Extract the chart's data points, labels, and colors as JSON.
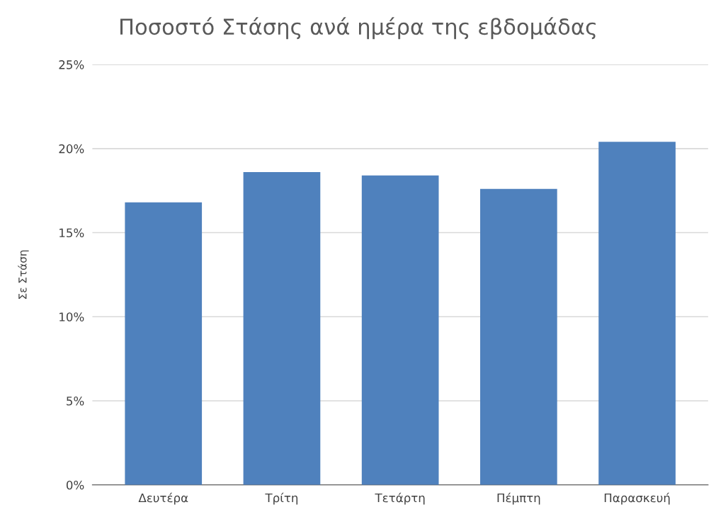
{
  "chart_data": {
    "type": "bar",
    "title": "Ποσοστό Στάσης ανά ημέρα της εβδομάδας",
    "ylabel": "Σε Στάση",
    "categories": [
      "Δευτέρα",
      "Τρίτη",
      "Τετάρτη",
      "Πέμπτη",
      "Παρασκευή"
    ],
    "values": [
      16.8,
      18.6,
      18.4,
      17.6,
      20.4
    ],
    "color": "#4f81bd",
    "ylim": [
      0,
      25
    ],
    "yticks": [
      {
        "value": 0,
        "label": "0%"
      },
      {
        "value": 5,
        "label": "5%"
      },
      {
        "value": 10,
        "label": "10%"
      },
      {
        "value": 15,
        "label": "15%"
      },
      {
        "value": 20,
        "label": "20%"
      },
      {
        "value": 25,
        "label": "25%"
      }
    ],
    "grid": "y",
    "legend": false
  }
}
